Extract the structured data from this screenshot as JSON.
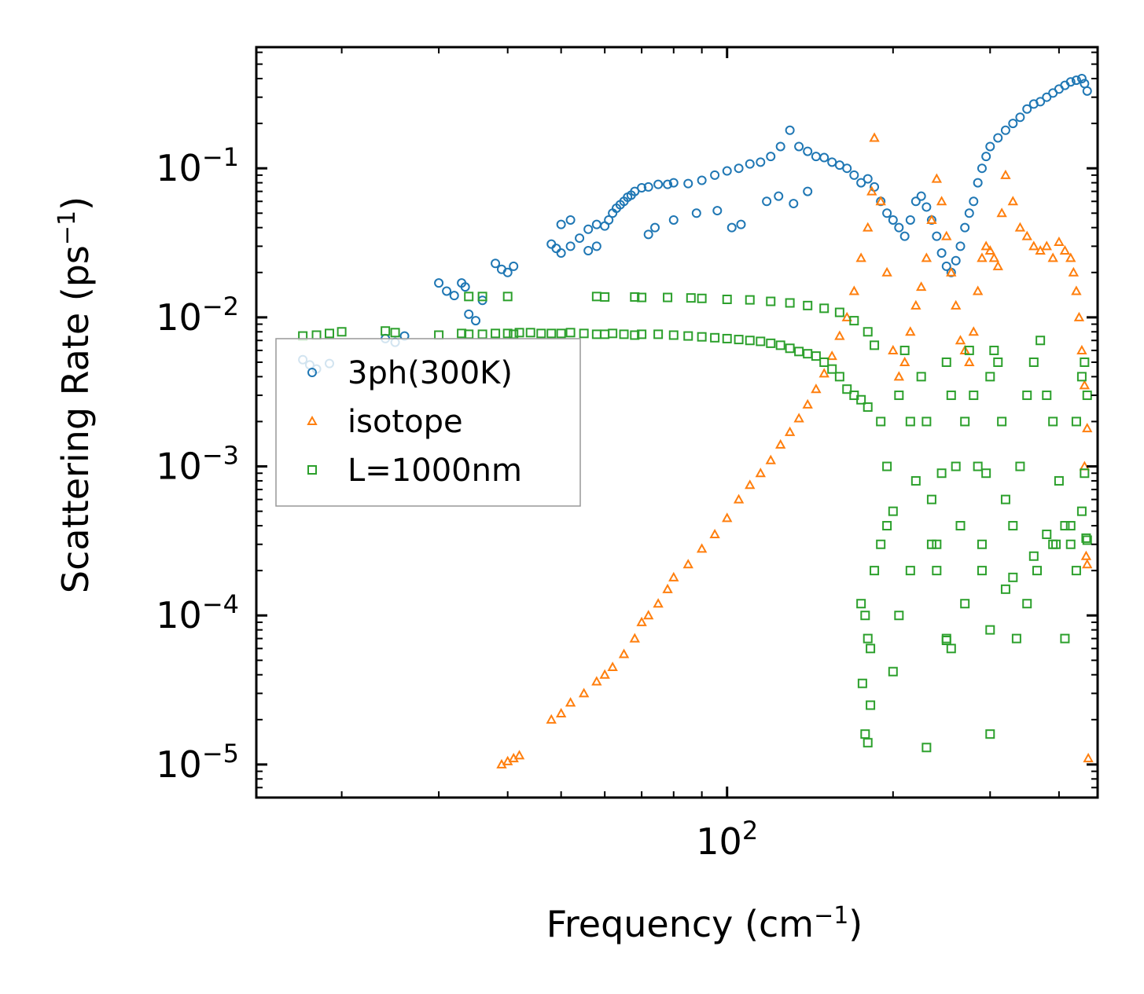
{
  "chart_data": {
    "type": "scatter",
    "title": "",
    "xlabel": "Frequency (cm",
    "xlabel_sup": "−1",
    "xlabel_end": ")",
    "ylabel": "Scattering Rate (ps",
    "ylabel_sup": "−1",
    "ylabel_end": ")",
    "xscale": "log",
    "yscale": "log",
    "xlim": [
      14,
      470
    ],
    "ylim": [
      6e-06,
      0.65
    ],
    "x_ticks": [
      {
        "value": 100,
        "base": "10",
        "exp": "2"
      }
    ],
    "y_ticks": [
      {
        "value": 0.1,
        "base": "10",
        "exp": "−1"
      },
      {
        "value": 0.01,
        "base": "10",
        "exp": "−2"
      },
      {
        "value": 0.001,
        "base": "10",
        "exp": "−3"
      },
      {
        "value": 0.0001,
        "base": "10",
        "exp": "−4"
      },
      {
        "value": 1e-05,
        "base": "10",
        "exp": "−5"
      }
    ],
    "legend_position": "center-left",
    "series": [
      {
        "name": "3ph(300K)",
        "color": "#1f77b4",
        "marker": "circle",
        "x": [
          17,
          17.5,
          18,
          19,
          24,
          25,
          26,
          30,
          31,
          32,
          33,
          33.5,
          34,
          35,
          36,
          38,
          39,
          40,
          41,
          48,
          49,
          50,
          52,
          54,
          56,
          58,
          60,
          61,
          62,
          63,
          64,
          65,
          66,
          67,
          68,
          70,
          72,
          75,
          78,
          80,
          85,
          90,
          95,
          100,
          105,
          110,
          115,
          120,
          125,
          130,
          135,
          140,
          145,
          150,
          155,
          160,
          165,
          170,
          175,
          180,
          185,
          190,
          195,
          200,
          205,
          210,
          215,
          220,
          225,
          230,
          235,
          240,
          245,
          250,
          255,
          260,
          265,
          270,
          275,
          280,
          285,
          290,
          295,
          300,
          310,
          320,
          330,
          340,
          350,
          360,
          370,
          380,
          390,
          400,
          410,
          420,
          430,
          440,
          445,
          450,
          72,
          74,
          80,
          88,
          96,
          102,
          106,
          118,
          124,
          132,
          140,
          56,
          58,
          50,
          52
        ],
        "y": [
          0.0052,
          0.0048,
          0.0045,
          0.0049,
          0.0072,
          0.0068,
          0.0075,
          0.017,
          0.015,
          0.014,
          0.017,
          0.016,
          0.0105,
          0.0095,
          0.013,
          0.023,
          0.021,
          0.02,
          0.022,
          0.031,
          0.029,
          0.027,
          0.03,
          0.034,
          0.039,
          0.042,
          0.041,
          0.045,
          0.05,
          0.054,
          0.057,
          0.06,
          0.064,
          0.066,
          0.07,
          0.074,
          0.075,
          0.078,
          0.078,
          0.08,
          0.079,
          0.083,
          0.09,
          0.096,
          0.1,
          0.107,
          0.11,
          0.12,
          0.14,
          0.18,
          0.14,
          0.13,
          0.12,
          0.118,
          0.11,
          0.105,
          0.1,
          0.09,
          0.08,
          0.085,
          0.075,
          0.06,
          0.05,
          0.045,
          0.04,
          0.035,
          0.045,
          0.06,
          0.065,
          0.055,
          0.045,
          0.035,
          0.027,
          0.022,
          0.02,
          0.024,
          0.03,
          0.04,
          0.05,
          0.06,
          0.08,
          0.1,
          0.12,
          0.14,
          0.16,
          0.18,
          0.2,
          0.22,
          0.25,
          0.27,
          0.28,
          0.3,
          0.32,
          0.34,
          0.36,
          0.38,
          0.39,
          0.4,
          0.37,
          0.33,
          0.036,
          0.04,
          0.045,
          0.05,
          0.052,
          0.04,
          0.042,
          0.06,
          0.065,
          0.058,
          0.07,
          0.028,
          0.03,
          0.042,
          0.045
        ]
      },
      {
        "name": "isotope",
        "color": "#ff7f0e",
        "marker": "triangle",
        "x": [
          39,
          40,
          41,
          42,
          48,
          50,
          52,
          55,
          58,
          60,
          62,
          65,
          68,
          70,
          72,
          75,
          78,
          80,
          85,
          90,
          95,
          100,
          105,
          110,
          115,
          120,
          125,
          130,
          135,
          140,
          145,
          150,
          155,
          160,
          165,
          170,
          175,
          180,
          183,
          185,
          190,
          195,
          200,
          205,
          210,
          215,
          220,
          225,
          230,
          235,
          240,
          245,
          250,
          255,
          260,
          265,
          270,
          275,
          280,
          285,
          290,
          295,
          300,
          305,
          310,
          315,
          320,
          330,
          340,
          350,
          360,
          370,
          380,
          390,
          400,
          410,
          420,
          425,
          430,
          435,
          440,
          445,
          450,
          445,
          448,
          450,
          452
        ],
        "y": [
          1e-05,
          1.05e-05,
          1.1e-05,
          1.15e-05,
          2e-05,
          2.2e-05,
          2.6e-05,
          3e-05,
          3.6e-05,
          4e-05,
          4.5e-05,
          5.5e-05,
          7e-05,
          9e-05,
          0.0001,
          0.00012,
          0.00015,
          0.00018,
          0.00022,
          0.00028,
          0.00035,
          0.00045,
          0.0006,
          0.00075,
          0.0009,
          0.0011,
          0.0014,
          0.0017,
          0.0021,
          0.0026,
          0.0033,
          0.0042,
          0.0055,
          0.0075,
          0.01,
          0.015,
          0.025,
          0.04,
          0.07,
          0.16,
          0.06,
          0.02,
          0.006,
          0.004,
          0.005,
          0.008,
          0.012,
          0.016,
          0.025,
          0.045,
          0.085,
          0.06,
          0.035,
          0.02,
          0.012,
          0.007,
          0.006,
          0.005,
          0.008,
          0.015,
          0.025,
          0.03,
          0.028,
          0.025,
          0.022,
          0.05,
          0.09,
          0.06,
          0.04,
          0.035,
          0.03,
          0.028,
          0.03,
          0.025,
          0.032,
          0.028,
          0.025,
          0.02,
          0.015,
          0.01,
          0.006,
          0.0035,
          0.0018,
          0.001,
          0.00025,
          0.00022,
          1.1e-05
        ]
      },
      {
        "name": "L=1000nm",
        "color": "#2ca02c",
        "marker": "square",
        "x": [
          17,
          18,
          19,
          20,
          24,
          25,
          30,
          33,
          34,
          36,
          38,
          40,
          41,
          42,
          44,
          46,
          48,
          50,
          52,
          55,
          58,
          60,
          62,
          65,
          68,
          70,
          75,
          80,
          85,
          90,
          95,
          100,
          105,
          110,
          115,
          120,
          125,
          130,
          135,
          140,
          145,
          150,
          155,
          160,
          165,
          170,
          175,
          180,
          34,
          36,
          40,
          58,
          60,
          68,
          70,
          78,
          86,
          90,
          100,
          110,
          120,
          130,
          140,
          150,
          160,
          170,
          180,
          185,
          190,
          195,
          200,
          205,
          210,
          215,
          220,
          225,
          230,
          235,
          240,
          245,
          250,
          255,
          260,
          265,
          270,
          275,
          280,
          285,
          290,
          295,
          300,
          305,
          310,
          315,
          320,
          330,
          340,
          350,
          360,
          370,
          380,
          390,
          400,
          410,
          420,
          430,
          440,
          445,
          450,
          175,
          178,
          180,
          182,
          185,
          190,
          195,
          205,
          215,
          235,
          240,
          250,
          255,
          290,
          300,
          320,
          335,
          350,
          365,
          380,
          395,
          410,
          430,
          445,
          448,
          450,
          176,
          178,
          180,
          182,
          200,
          230,
          300,
          250,
          270,
          330,
          360,
          390,
          420,
          440
        ],
        "y": [
          0.0075,
          0.0076,
          0.0078,
          0.008,
          0.0081,
          0.0079,
          0.0076,
          0.0078,
          0.0077,
          0.0077,
          0.0078,
          0.0078,
          0.0077,
          0.0079,
          0.0079,
          0.0078,
          0.0078,
          0.0078,
          0.0079,
          0.0078,
          0.0077,
          0.0077,
          0.0078,
          0.0077,
          0.0076,
          0.0077,
          0.0077,
          0.0076,
          0.0075,
          0.0074,
          0.0073,
          0.0072,
          0.0071,
          0.007,
          0.0069,
          0.0067,
          0.0065,
          0.0062,
          0.0059,
          0.0057,
          0.0055,
          0.005,
          0.0045,
          0.004,
          0.0033,
          0.003,
          0.0028,
          0.0025,
          0.0138,
          0.0138,
          0.0138,
          0.0138,
          0.0137,
          0.0137,
          0.0136,
          0.0136,
          0.0135,
          0.0134,
          0.0132,
          0.0131,
          0.0128,
          0.0125,
          0.012,
          0.0115,
          0.0108,
          0.0095,
          0.008,
          0.0065,
          0.002,
          0.001,
          0.0005,
          0.003,
          0.006,
          0.002,
          0.0008,
          0.004,
          0.002,
          0.0006,
          0.0003,
          0.0009,
          0.005,
          0.003,
          0.001,
          0.0004,
          0.002,
          0.006,
          0.003,
          0.001,
          0.0003,
          0.0009,
          0.004,
          0.006,
          0.005,
          0.002,
          0.0006,
          0.0004,
          0.001,
          0.003,
          0.005,
          0.007,
          0.003,
          0.002,
          0.0008,
          0.0004,
          0.0003,
          0.002,
          0.004,
          0.005,
          0.003,
          0.00012,
          0.0001,
          7e-05,
          6e-05,
          0.0002,
          0.0003,
          0.0004,
          0.0001,
          0.0002,
          0.0003,
          0.0002,
          7e-05,
          6e-05,
          0.0002,
          8e-05,
          0.00015,
          7e-05,
          0.00012,
          0.0002,
          0.00035,
          0.0003,
          7e-05,
          0.0002,
          0.0009,
          0.00033,
          0.00032,
          3.5e-05,
          1.6e-05,
          1.4e-05,
          2.5e-05,
          4.2e-05,
          1.3e-05,
          1.6e-05,
          6.8e-05,
          0.00012,
          0.00018,
          0.00025,
          0.0003,
          0.0004,
          0.0005
        ]
      }
    ]
  }
}
